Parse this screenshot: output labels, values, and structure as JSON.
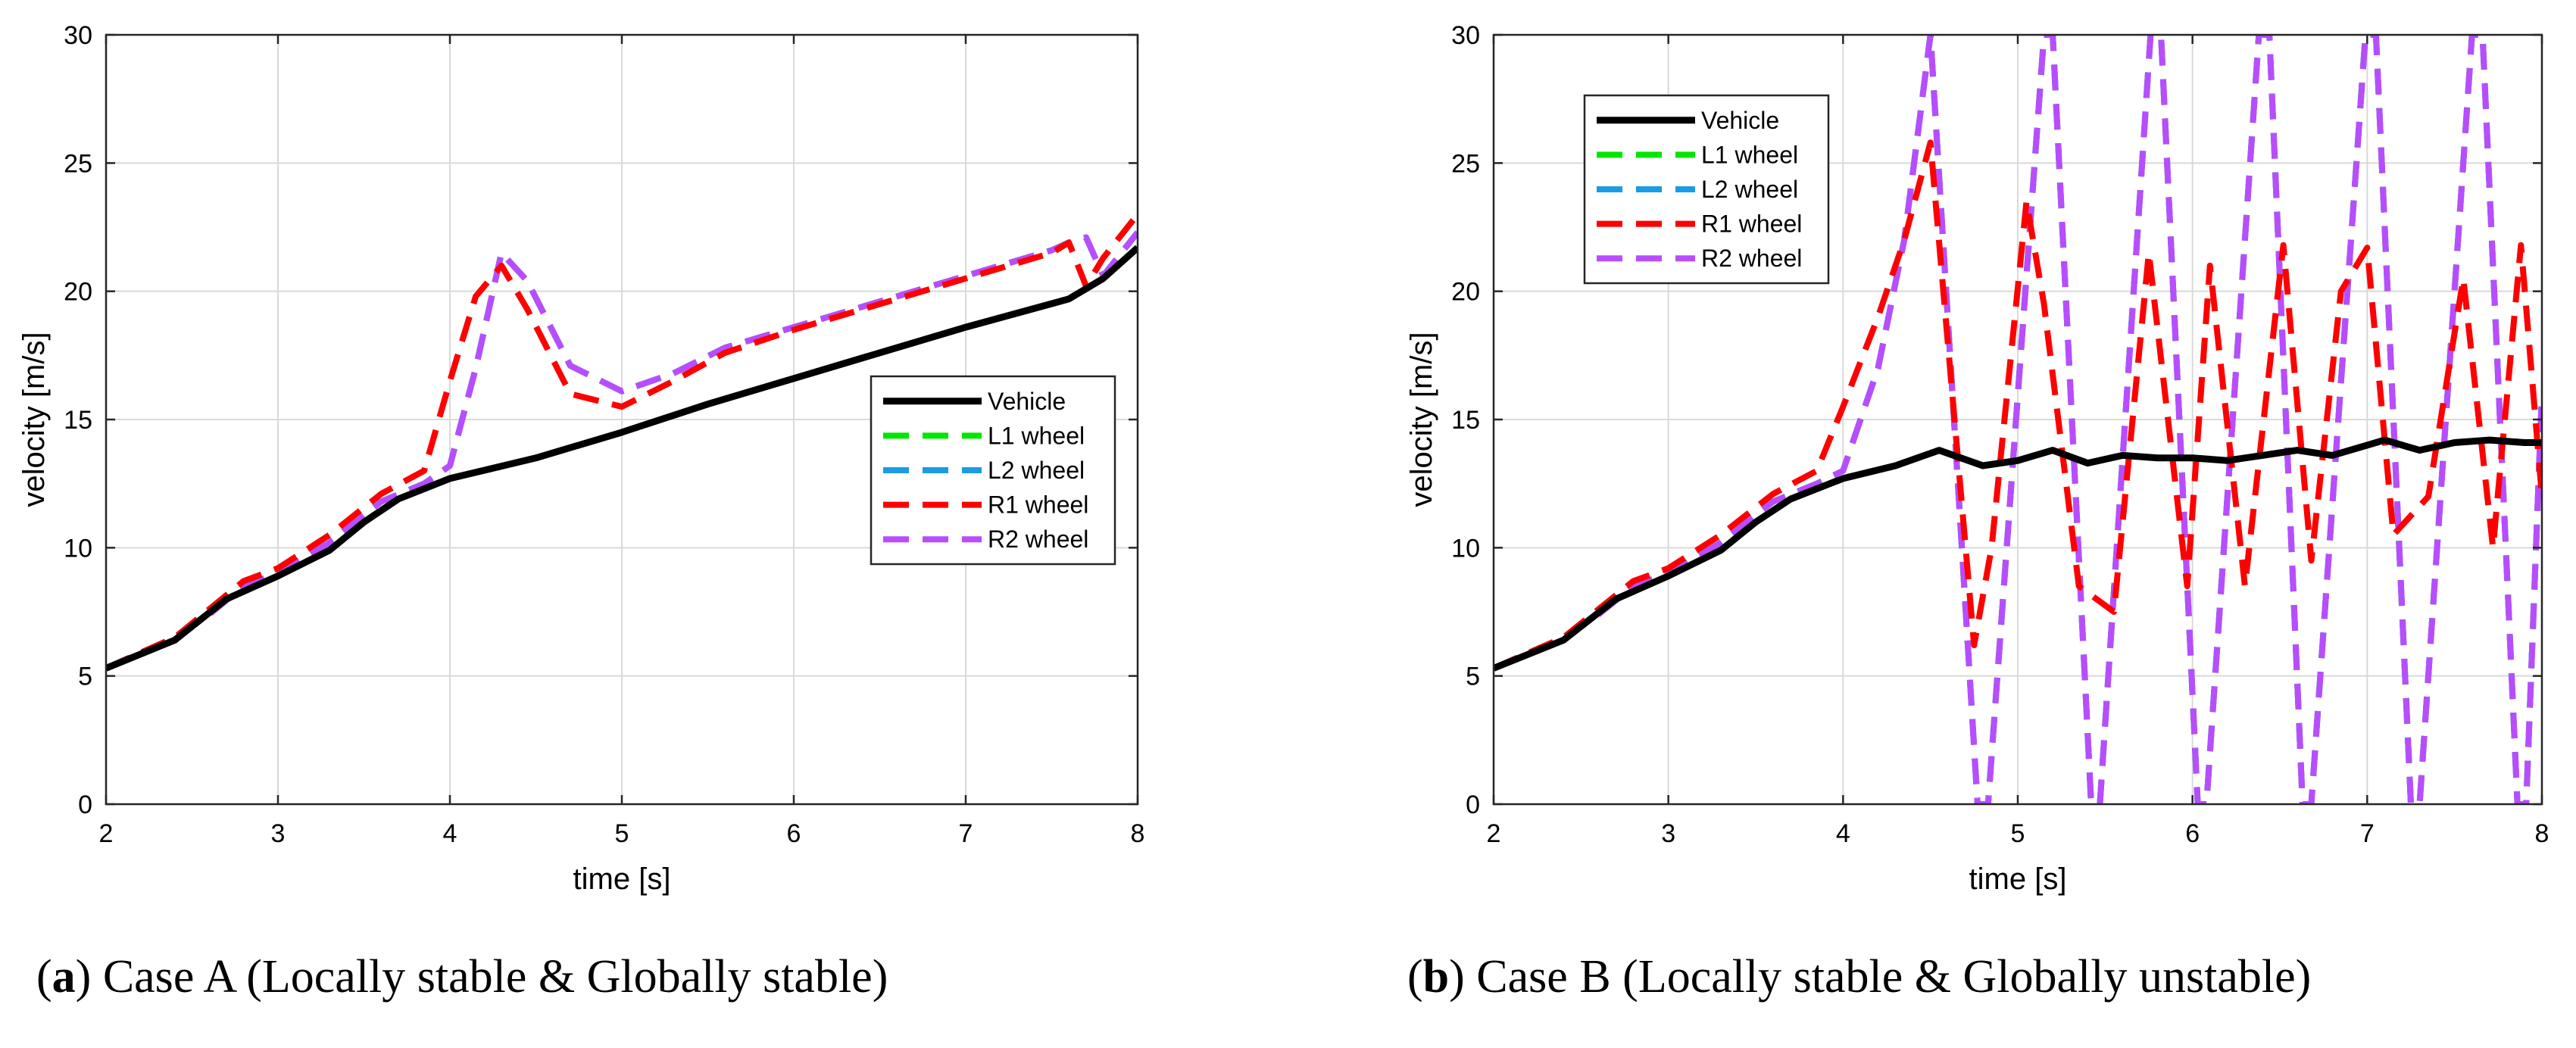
{
  "captions": [
    {
      "letter": "a",
      "text": "Case A (Locally stable & Globally stable)"
    },
    {
      "letter": "b",
      "text": "Case B (Locally stable & Globally unstable)"
    }
  ],
  "chart_data": [
    {
      "type": "line",
      "title": "",
      "xlabel": "time [s]",
      "ylabel": "velocity [m/s]",
      "xlim": [
        2,
        8
      ],
      "ylim": [
        0,
        30
      ],
      "xticks": [
        2,
        3,
        4,
        5,
        6,
        7,
        8
      ],
      "yticks": [
        0,
        5,
        10,
        15,
        20,
        25,
        30
      ],
      "grid": true,
      "legend_position": "center-right",
      "series": [
        {
          "name": "Vehicle",
          "color": "#000000",
          "style": "solid",
          "x": [
            2,
            2.4,
            2.7,
            3,
            3.3,
            3.5,
            3.7,
            4,
            4.5,
            5,
            5.5,
            6,
            6.5,
            7,
            7.6,
            7.8,
            8
          ],
          "y": [
            5.3,
            6.4,
            8.0,
            8.9,
            9.9,
            11.0,
            11.9,
            12.7,
            13.5,
            14.5,
            15.6,
            16.6,
            17.6,
            18.6,
            19.7,
            20.5,
            21.7
          ]
        },
        {
          "name": "L1 wheel",
          "color": "#00e600",
          "style": "dashed",
          "x": [
            2,
            2.4,
            2.6,
            2.8,
            3,
            3.3,
            3.6,
            3.85,
            4,
            4.15,
            4.3,
            4.45,
            4.7,
            5,
            5.3,
            5.6,
            6,
            6.5,
            7,
            7.5,
            7.6,
            7.7,
            7.8,
            8
          ],
          "y": [
            5.3,
            6.5,
            7.4,
            8.5,
            9.0,
            10.2,
            11.8,
            12.5,
            13.2,
            17.0,
            21.5,
            20.4,
            17.1,
            16.1,
            16.8,
            17.8,
            18.6,
            19.6,
            20.6,
            21.6,
            21.9,
            22.1,
            20.6,
            22.3
          ]
        },
        {
          "name": "L2 wheel",
          "color": "#1a9be6",
          "style": "dashed",
          "x": [
            2,
            2.4,
            2.6,
            2.8,
            3,
            3.3,
            3.6,
            3.85,
            4,
            4.15,
            4.3,
            4.45,
            4.7,
            5,
            5.3,
            5.6,
            6,
            6.5,
            7,
            7.5,
            7.6,
            7.7,
            7.8,
            8
          ],
          "y": [
            5.3,
            6.5,
            7.4,
            8.5,
            9.0,
            10.2,
            11.8,
            12.5,
            13.2,
            17.0,
            21.5,
            20.4,
            17.1,
            16.1,
            16.8,
            17.8,
            18.6,
            19.6,
            20.6,
            21.6,
            21.9,
            22.1,
            20.6,
            22.3
          ]
        },
        {
          "name": "R1 wheel",
          "color": "#ff0000",
          "style": "dashed",
          "x": [
            2,
            2.4,
            2.6,
            2.8,
            3,
            3.3,
            3.6,
            3.85,
            4,
            4.15,
            4.3,
            4.45,
            4.7,
            5,
            5.3,
            5.6,
            6,
            6.5,
            7,
            7.5,
            7.6,
            7.7,
            7.8,
            8
          ],
          "y": [
            5.3,
            6.5,
            7.6,
            8.7,
            9.2,
            10.5,
            12.1,
            13.0,
            16.5,
            19.8,
            21.0,
            19.3,
            16.0,
            15.5,
            16.5,
            17.6,
            18.5,
            19.5,
            20.5,
            21.5,
            21.9,
            20.2,
            21.3,
            23.0
          ]
        },
        {
          "name": "R2 wheel",
          "color": "#b84dff",
          "style": "dashed",
          "x": [
            2,
            2.4,
            2.6,
            2.8,
            3,
            3.3,
            3.6,
            3.85,
            4,
            4.15,
            4.3,
            4.45,
            4.7,
            5,
            5.3,
            5.6,
            6,
            6.5,
            7,
            7.5,
            7.6,
            7.7,
            7.8,
            8
          ],
          "y": [
            5.3,
            6.5,
            7.4,
            8.5,
            9.0,
            10.2,
            11.8,
            12.5,
            13.2,
            17.0,
            21.5,
            20.4,
            17.1,
            16.1,
            16.8,
            17.8,
            18.6,
            19.6,
            20.6,
            21.6,
            21.9,
            22.1,
            20.6,
            22.3
          ]
        }
      ]
    },
    {
      "type": "line",
      "title": "",
      "xlabel": "time [s]",
      "ylabel": "velocity [m/s]",
      "xlim": [
        2,
        8
      ],
      "ylim": [
        0,
        30
      ],
      "xticks": [
        2,
        3,
        4,
        5,
        6,
        7,
        8
      ],
      "yticks": [
        0,
        5,
        10,
        15,
        20,
        25,
        30
      ],
      "grid": true,
      "legend_position": "top-left",
      "series": [
        {
          "name": "Vehicle",
          "color": "#000000",
          "style": "solid",
          "x": [
            2,
            2.4,
            2.7,
            3,
            3.3,
            3.5,
            3.7,
            4,
            4.3,
            4.55,
            4.8,
            5,
            5.2,
            5.4,
            5.6,
            5.8,
            6,
            6.2,
            6.4,
            6.6,
            6.8,
            7,
            7.1,
            7.3,
            7.5,
            7.7,
            7.9,
            8
          ],
          "y": [
            5.3,
            6.4,
            8.0,
            8.9,
            9.9,
            11.0,
            11.9,
            12.7,
            13.2,
            13.8,
            13.2,
            13.4,
            13.8,
            13.3,
            13.6,
            13.5,
            13.5,
            13.4,
            13.6,
            13.8,
            13.6,
            14.0,
            14.2,
            13.8,
            14.1,
            14.2,
            14.1,
            14.1
          ]
        },
        {
          "name": "L1 wheel",
          "color": "#00e600",
          "style": "dashed",
          "x": [
            2,
            2.4,
            2.6,
            2.8,
            3,
            3.3,
            3.6,
            3.85,
            4,
            4.2,
            4.35,
            4.5,
            4.77,
            4.83,
            5.15,
            5.2,
            5.42,
            5.47,
            5.76,
            5.82,
            6.03,
            6.08,
            6.38,
            6.44,
            6.63,
            6.68,
            6.99,
            7.05,
            7.25,
            7.3,
            7.6,
            7.66,
            7.86,
            7.91,
            8
          ],
          "y": [
            5.3,
            6.5,
            7.4,
            8.5,
            9.0,
            10.2,
            11.8,
            12.5,
            13.0,
            17.0,
            22.0,
            30,
            0,
            0,
            30,
            30,
            0,
            0,
            30,
            30,
            0,
            0,
            30,
            30,
            0,
            0,
            30,
            30,
            0,
            0,
            30,
            30,
            0,
            0,
            16.0
          ]
        },
        {
          "name": "L2 wheel",
          "color": "#1a9be6",
          "style": "dashed",
          "x": [
            2,
            2.4,
            2.6,
            2.8,
            3,
            3.3,
            3.6,
            3.85,
            4,
            4.2,
            4.35,
            4.5,
            4.77,
            4.83,
            5.15,
            5.2,
            5.42,
            5.47,
            5.76,
            5.82,
            6.03,
            6.08,
            6.38,
            6.44,
            6.63,
            6.68,
            6.99,
            7.05,
            7.25,
            7.3,
            7.6,
            7.66,
            7.86,
            7.91,
            8
          ],
          "y": [
            5.3,
            6.5,
            7.4,
            8.5,
            9.0,
            10.2,
            11.8,
            12.5,
            13.0,
            17.0,
            22.0,
            30,
            0,
            0,
            30,
            30,
            0,
            0,
            30,
            30,
            0,
            0,
            30,
            30,
            0,
            0,
            30,
            30,
            0,
            0,
            30,
            30,
            0,
            0,
            16.0
          ]
        },
        {
          "name": "R1 wheel",
          "color": "#ff0000",
          "style": "dashed",
          "x": [
            2,
            2.4,
            2.6,
            2.8,
            3,
            3.3,
            3.6,
            3.85,
            4,
            4.2,
            4.35,
            4.5,
            4.75,
            4.85,
            5.05,
            5.15,
            5.35,
            5.55,
            5.75,
            5.97,
            6.1,
            6.3,
            6.52,
            6.68,
            6.85,
            7.0,
            7.15,
            7.35,
            7.55,
            7.72,
            7.88,
            8
          ],
          "y": [
            5.3,
            6.5,
            7.6,
            8.7,
            9.2,
            10.5,
            12.1,
            13.0,
            15.5,
            19.0,
            22.0,
            25.8,
            6.2,
            10.0,
            23.5,
            19.5,
            8.5,
            7.5,
            21.5,
            8.5,
            21.0,
            8.5,
            21.8,
            9.5,
            20.0,
            21.7,
            10.5,
            12.0,
            20.5,
            10.0,
            21.8,
            12.0
          ]
        },
        {
          "name": "R2 wheel",
          "color": "#b84dff",
          "style": "dashed",
          "x": [
            2,
            2.4,
            2.6,
            2.8,
            3,
            3.3,
            3.6,
            3.85,
            4,
            4.2,
            4.35,
            4.5,
            4.77,
            4.83,
            5.15,
            5.2,
            5.42,
            5.47,
            5.76,
            5.82,
            6.03,
            6.08,
            6.38,
            6.44,
            6.63,
            6.68,
            6.99,
            7.05,
            7.25,
            7.3,
            7.6,
            7.66,
            7.86,
            7.91,
            8
          ],
          "y": [
            5.3,
            6.5,
            7.4,
            8.5,
            9.0,
            10.2,
            11.8,
            12.5,
            13.0,
            17.0,
            22.0,
            30,
            0,
            0,
            30,
            30,
            0,
            0,
            30,
            30,
            0,
            0,
            30,
            30,
            0,
            0,
            30,
            30,
            0,
            0,
            30,
            30,
            0,
            0,
            16.0
          ]
        }
      ]
    }
  ]
}
